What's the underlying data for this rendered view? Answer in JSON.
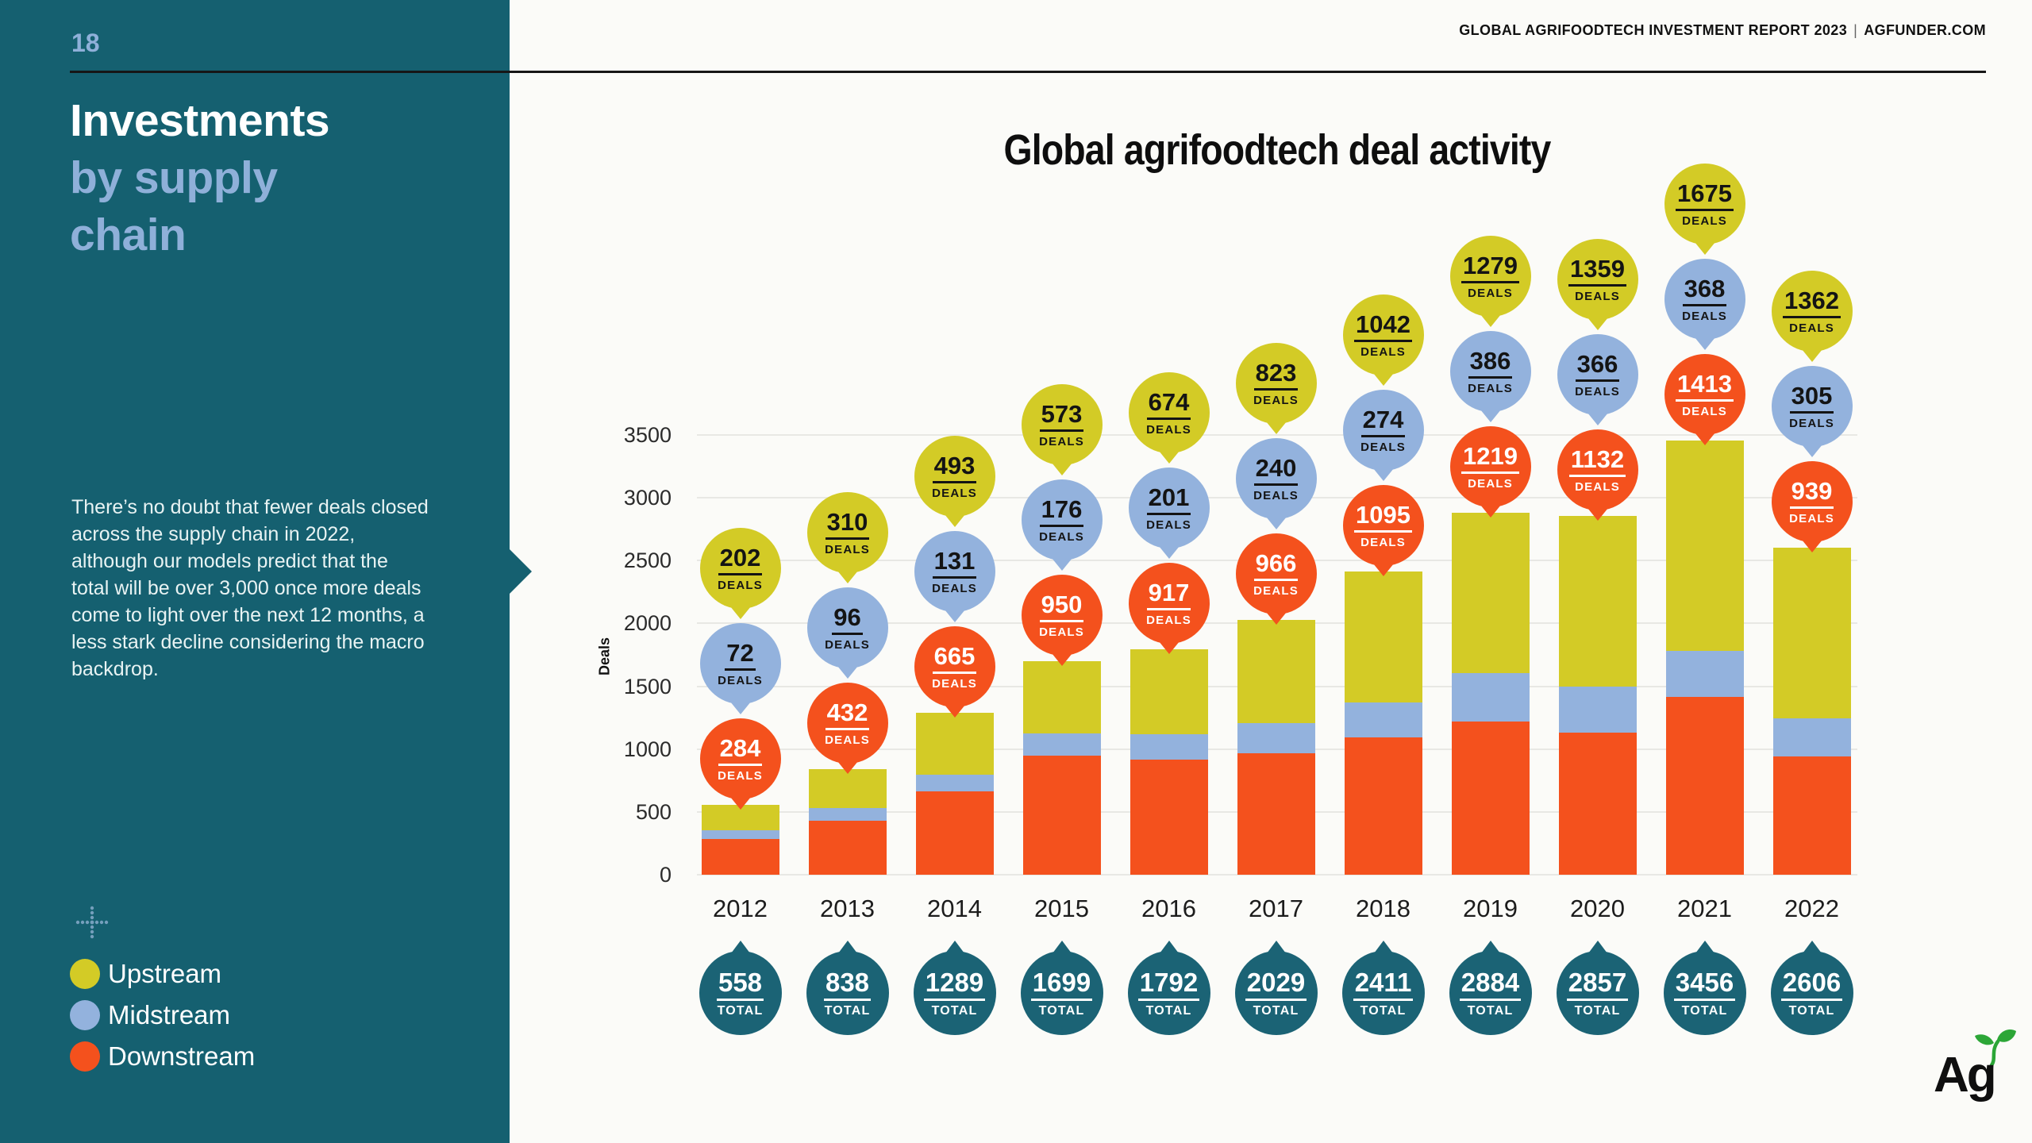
{
  "page": {
    "number": "18"
  },
  "header": {
    "report_title": "GLOBAL AGRIFOODTECH INVESTMENT REPORT 2023",
    "separator": "|",
    "site": "AGFUNDER.COM"
  },
  "sidebar": {
    "page_number": "18",
    "title_line1": "Investments",
    "title_line2": "by supply",
    "title_line3": "chain",
    "body_text": "There’s no doubt that fewer deals closed across the supply chain in 2022, although our models predict that the total will be over 3,000 once more deals come to light over the next 12 months, a less stark decline considering the macro backdrop.",
    "legend": [
      {
        "label": "Upstream",
        "color": "#D3CB26"
      },
      {
        "label": "Midstream",
        "color": "#93B2DD"
      },
      {
        "label": "Downstream",
        "color": "#F4511D"
      }
    ]
  },
  "colors": {
    "sidebar": "#156070",
    "accent_text": "#8FB0D9",
    "total_bubble": "#1B6375",
    "gridline": "#E8E8E4",
    "background": "#FBFBF8"
  },
  "chart_data": {
    "type": "bar",
    "stacked": true,
    "title": "Global agrifoodtech deal activity",
    "ylabel": "Deals",
    "ylim": [
      0,
      3500
    ],
    "yticks": [
      0,
      500,
      1000,
      1500,
      2000,
      2500,
      3000,
      3500
    ],
    "grid": true,
    "legend_position": "sidebar-bottom-left",
    "categories": [
      "2012",
      "2013",
      "2014",
      "2015",
      "2016",
      "2017",
      "2018",
      "2019",
      "2020",
      "2021",
      "2022"
    ],
    "series": [
      {
        "name": "Downstream",
        "color": "#F4511D",
        "text_color": "#FFFFFF",
        "values": [
          284,
          432,
          665,
          950,
          917,
          966,
          1095,
          1219,
          1132,
          1413,
          939
        ]
      },
      {
        "name": "Midstream",
        "color": "#93B2DD",
        "text_color": "#141414",
        "values": [
          72,
          96,
          131,
          176,
          201,
          240,
          274,
          386,
          366,
          368,
          305
        ]
      },
      {
        "name": "Upstream",
        "color": "#D3CB26",
        "text_color": "#141414",
        "values": [
          202,
          310,
          493,
          573,
          674,
          823,
          1042,
          1279,
          1359,
          1675,
          1362
        ]
      }
    ],
    "totals": [
      558,
      838,
      1289,
      1699,
      1792,
      2029,
      2411,
      2884,
      2857,
      3456,
      2606
    ],
    "bubble_unit_label": "DEALS",
    "total_unit_label": "TOTAL",
    "total_color": "#1B6375"
  },
  "logo": {
    "text": "Ag"
  }
}
